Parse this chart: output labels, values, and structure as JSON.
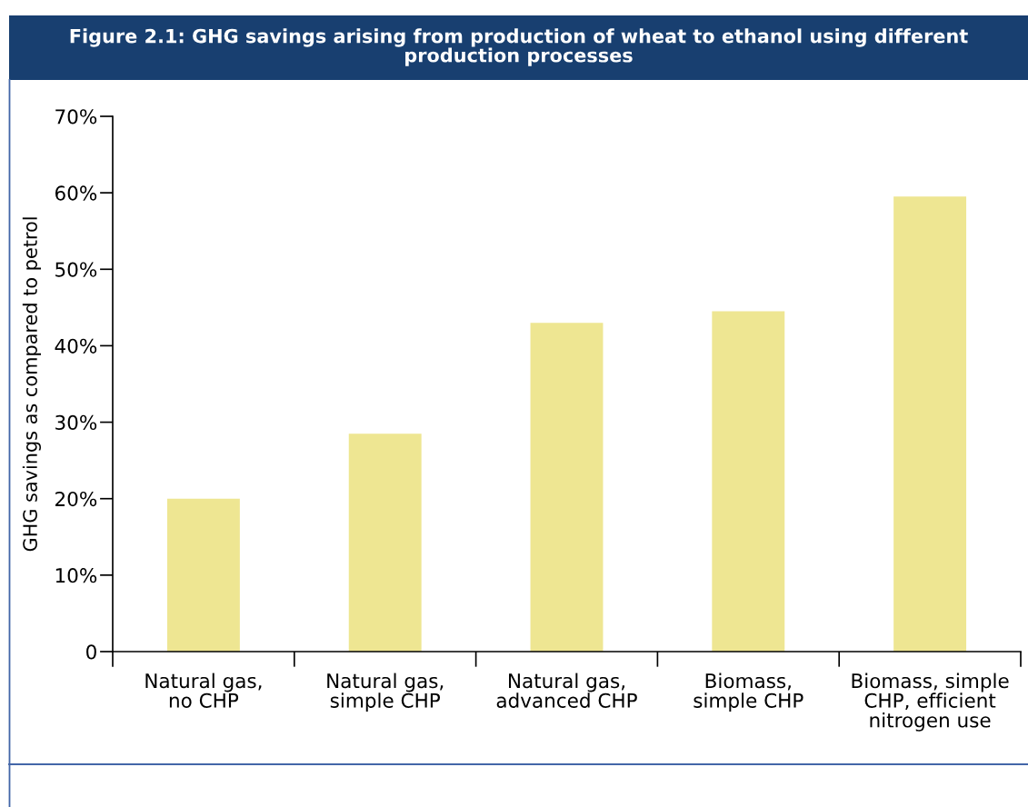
{
  "chart_data": {
    "type": "bar",
    "title": "Figure 2.1: GHG savings arising from production of wheat to ethanol using different production processes",
    "ylabel": "GHG savings as compared to petrol",
    "categories": [
      "Natural gas,\nno CHP",
      "Natural gas,\nsimple CHP",
      "Natural gas,\nadvanced CHP",
      "Biomass,\nsimple CHP",
      "Biomass, simple\nCHP, efficient\nnitrogen use"
    ],
    "values": [
      20,
      28.5,
      43,
      44.5,
      59.5
    ],
    "color": "#eee692",
    "ylim": [
      0,
      70
    ],
    "yticks": [
      0,
      {
        "value": 10,
        "label": "10%"
      },
      {
        "value": 20,
        "label": "20%"
      },
      {
        "value": 30,
        "label": "30%"
      },
      {
        "value": 40,
        "label": "40%"
      },
      {
        "value": 50,
        "label": "50%"
      },
      {
        "value": 60,
        "label": "60%"
      },
      {
        "value": 70,
        "label": "70%"
      }
    ]
  }
}
